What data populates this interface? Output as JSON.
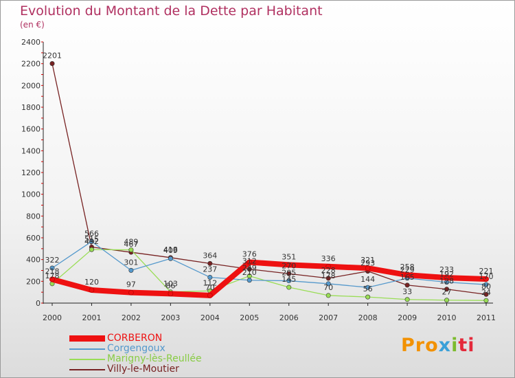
{
  "title": "Evolution du Montant de la Dette par Habitant",
  "subtitle": "(en €)",
  "logo": [
    "Pro",
    "x",
    "i",
    "ti"
  ],
  "chart_data": {
    "type": "line",
    "title": "Evolution du Montant de la Dette par Habitant",
    "ylabel": "(en €)",
    "xlabel": "",
    "ylim": [
      0,
      2400
    ],
    "yticks": [
      0,
      200,
      400,
      600,
      800,
      1000,
      1200,
      1400,
      1600,
      1800,
      2000,
      2200,
      2400
    ],
    "grid": false,
    "legend": "bottom-left",
    "categories": [
      "2000",
      "2001",
      "2002",
      "2003",
      "2004",
      "2005",
      "2006",
      "2007",
      "2008",
      "2009",
      "2010",
      "2011"
    ],
    "series": [
      {
        "name": "CORBERON",
        "color": "#ee1111",
        "values": [
          218,
          120,
          97,
          86,
          70,
          376,
          351,
          336,
          321,
          258,
          233,
          221
        ]
      },
      {
        "name": "Corgengoux",
        "color": "#5599cc",
        "values": [
          322,
          566,
          301,
          409,
          237,
          210,
          205,
          178,
          144,
          229,
          192,
          170
        ]
      },
      {
        "name": "Marigny-lès-Reullée",
        "color": "#99dd55",
        "values": [
          178,
          492,
          489,
          103,
          112,
          249,
          145,
          70,
          56,
          33,
          27,
          24
        ]
      },
      {
        "name": "Villy-le-Moutier",
        "color": "#772222",
        "values": [
          2201,
          515,
          467,
          418,
          364,
          312,
          270,
          228,
          293,
          165,
          128,
          80
        ]
      }
    ]
  }
}
